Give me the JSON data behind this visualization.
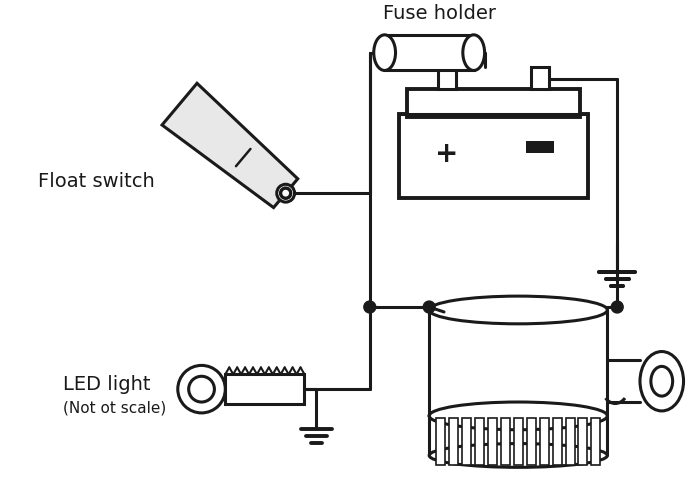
{
  "bg_color": "#ffffff",
  "line_color": "#1a1a1a",
  "text_color": "#1a1a1a",
  "labels": {
    "fuse_holder": "Fuse holder",
    "float_switch": "Float switch",
    "led_light": "LED light",
    "led_subtext": "(Not ot scale)"
  },
  "figsize": [
    7.0,
    5.0
  ],
  "dpi": 100
}
